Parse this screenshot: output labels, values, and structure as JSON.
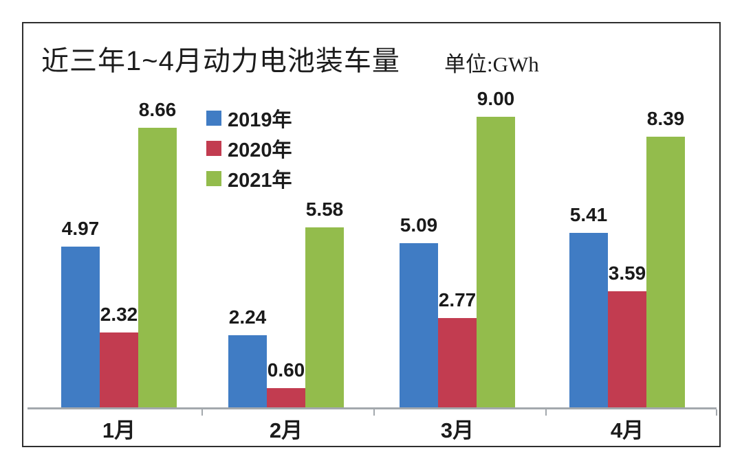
{
  "header": {
    "title": "近三年1~4月动力电池装车量",
    "unit_label": "单位:GWh"
  },
  "chart_data": {
    "type": "bar",
    "title": "近三年1~4月动力电池装车量",
    "unit": "GWh",
    "categories": [
      "1月",
      "2月",
      "3月",
      "4月"
    ],
    "series": [
      {
        "name": "2019年",
        "color": "#407cc4",
        "values": [
          4.97,
          2.24,
          5.09,
          5.41
        ]
      },
      {
        "name": "2020年",
        "color": "#c23c50",
        "values": [
          2.32,
          0.6,
          2.77,
          3.59
        ]
      },
      {
        "name": "2021年",
        "color": "#93bc4c",
        "values": [
          8.66,
          5.58,
          9.0,
          8.39
        ]
      }
    ],
    "ylim": [
      0,
      9.3
    ],
    "grid": false,
    "value_labels": true,
    "value_label_decimals": 2,
    "legend_position": "upper-left-inside",
    "axis_color": "#a3a8ad"
  }
}
